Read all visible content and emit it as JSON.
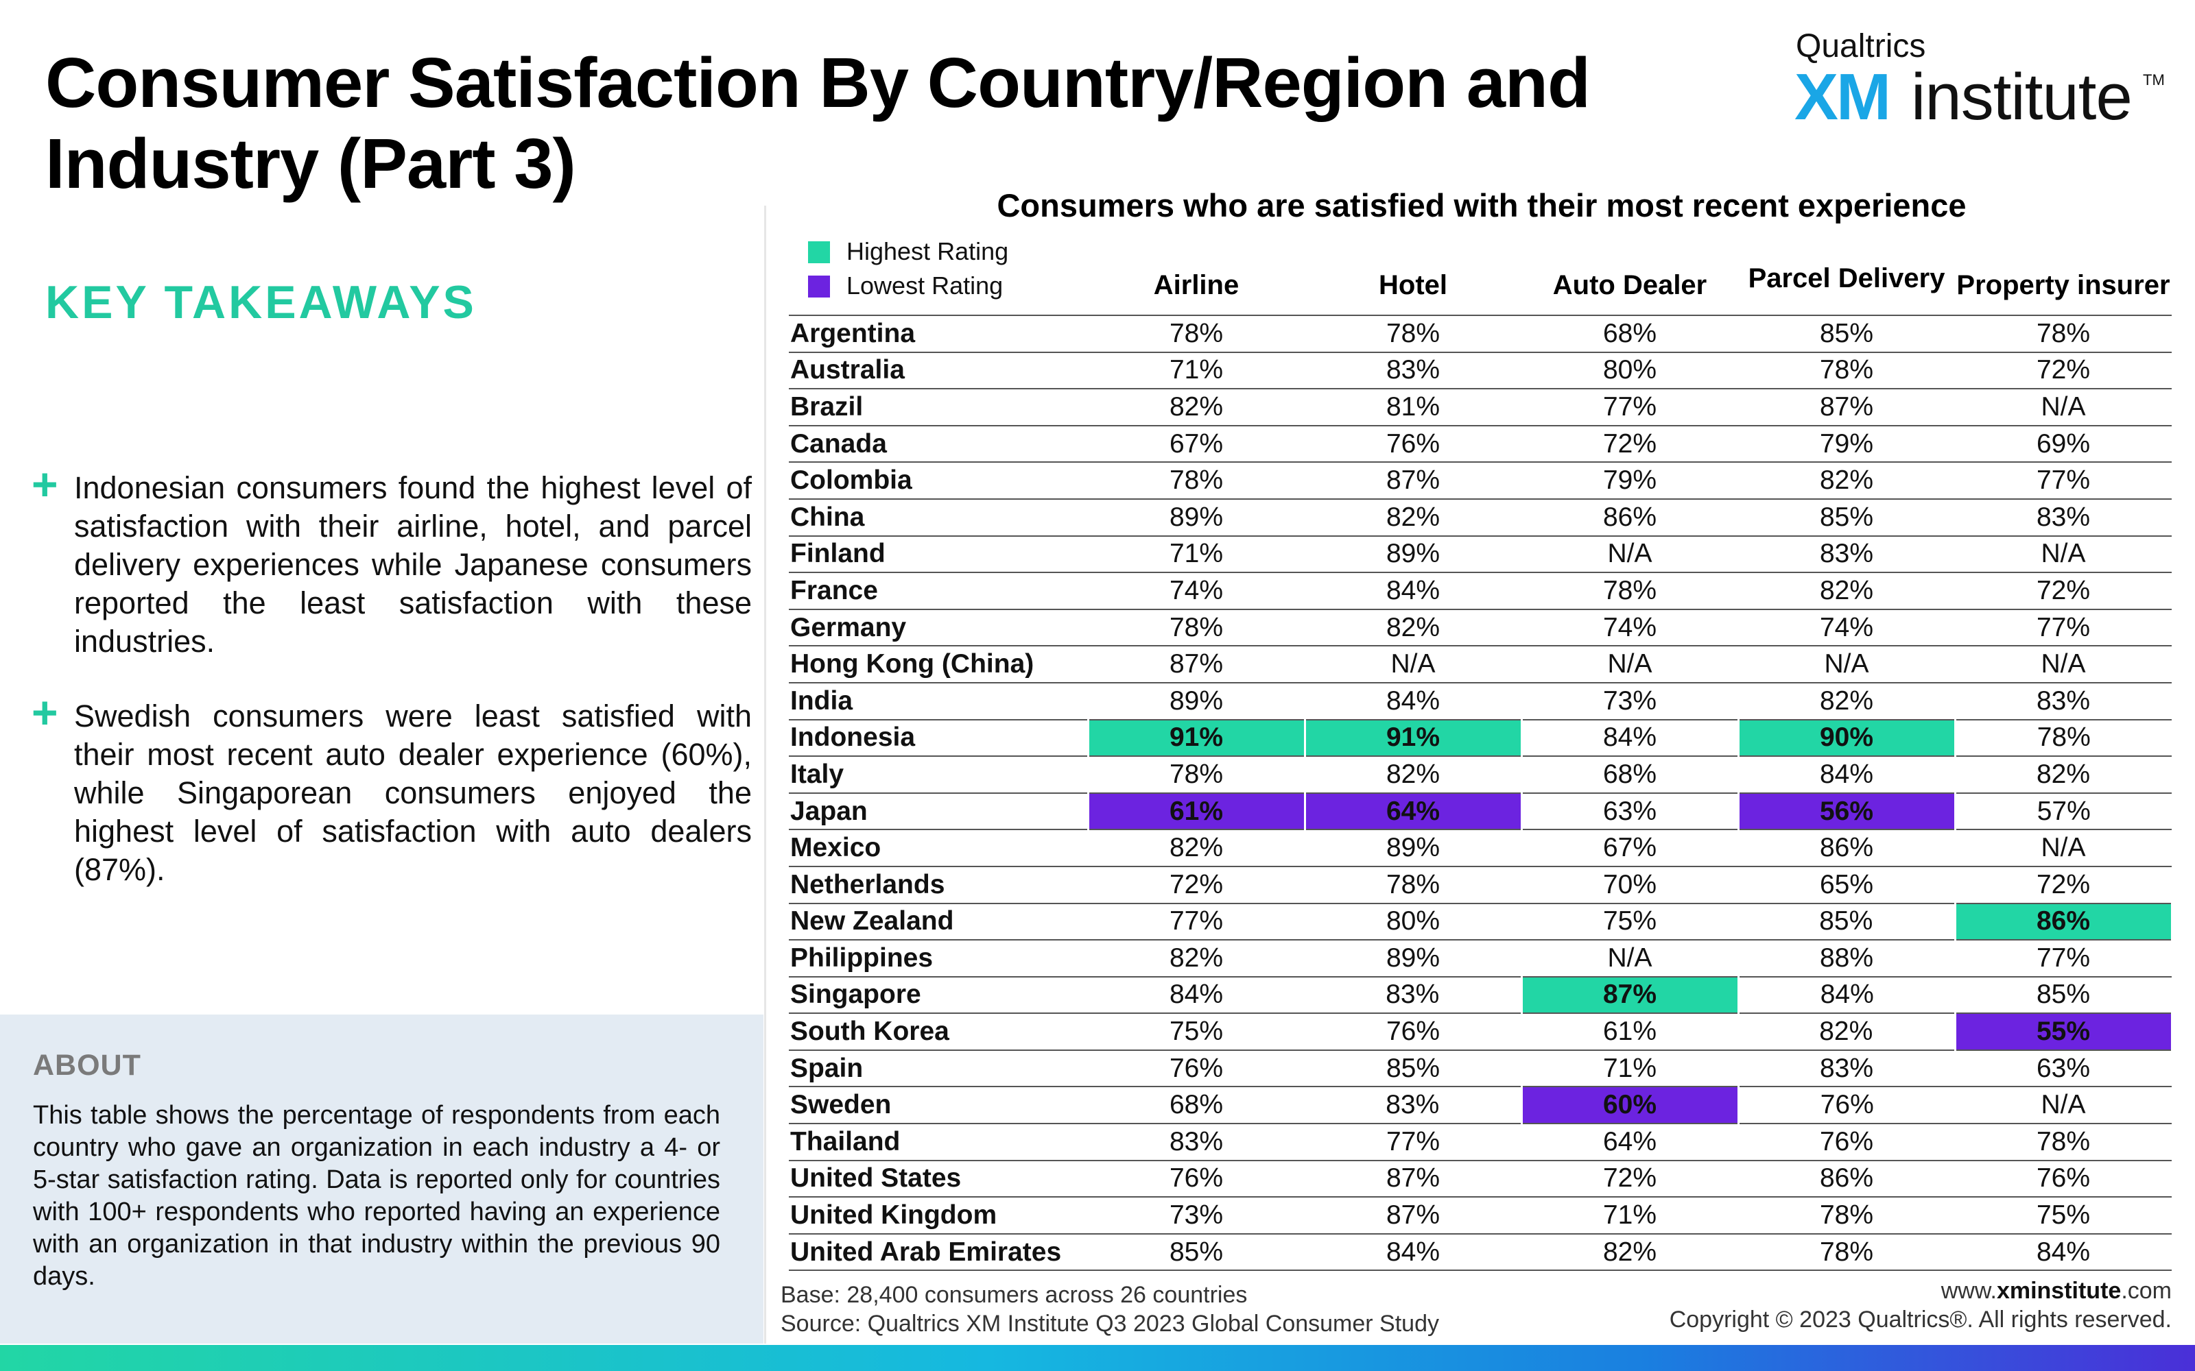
{
  "title": "Consumer Satisfaction By Country/Region and Industry (Part 3)",
  "logo": {
    "top": "Qualtrics",
    "xm": "XM",
    "institute": "institute",
    "tm": "TM"
  },
  "takeaways": {
    "heading": "KEY TAKEAWAYS",
    "bullets": [
      "Indonesian consumers found the highest level of satisfaction with their airline, hotel, and parcel delivery experiences while Japanese consumers reported the least satisfaction with these industries.",
      "Swedish consumers were least satisfied with their most recent auto dealer experience (60%), while Singaporean consumers enjoyed the highest level of satisfaction with auto dealers (87%)."
    ]
  },
  "about": {
    "title": "ABOUT",
    "text": "This table shows the percentage of respondents from each country who gave an organization in each industry a 4- or 5-star satisfaction rating. Data is reported only for countries with 100+ respondents who reported having an experience with an organization in that industry within the previous 90 days."
  },
  "table": {
    "title": "Consumers who are satisfied with their most recent experience",
    "legend": [
      {
        "label": "Highest Rating",
        "color": "#22d6a5"
      },
      {
        "label": "Lowest Rating",
        "color": "#6c23e0"
      }
    ],
    "columns": [
      "Airline",
      "Hotel",
      "Auto Dealer",
      "Parcel Delivery",
      "Property insurer"
    ],
    "rows": [
      {
        "country": "Argentina",
        "values": [
          "78%",
          "78%",
          "68%",
          "85%",
          "78%"
        ]
      },
      {
        "country": "Australia",
        "values": [
          "71%",
          "83%",
          "80%",
          "78%",
          "72%"
        ]
      },
      {
        "country": "Brazil",
        "values": [
          "82%",
          "81%",
          "77%",
          "87%",
          "N/A"
        ]
      },
      {
        "country": "Canada",
        "values": [
          "67%",
          "76%",
          "72%",
          "79%",
          "69%"
        ]
      },
      {
        "country": "Colombia",
        "values": [
          "78%",
          "87%",
          "79%",
          "82%",
          "77%"
        ]
      },
      {
        "country": "China",
        "values": [
          "89%",
          "82%",
          "86%",
          "85%",
          "83%"
        ]
      },
      {
        "country": "Finland",
        "values": [
          "71%",
          "89%",
          "N/A",
          "83%",
          "N/A"
        ]
      },
      {
        "country": "France",
        "values": [
          "74%",
          "84%",
          "78%",
          "82%",
          "72%"
        ]
      },
      {
        "country": "Germany",
        "values": [
          "78%",
          "82%",
          "74%",
          "74%",
          "77%"
        ]
      },
      {
        "country": "Hong Kong (China)",
        "values": [
          "87%",
          "N/A",
          "N/A",
          "N/A",
          "N/A"
        ]
      },
      {
        "country": "India",
        "values": [
          "89%",
          "84%",
          "73%",
          "82%",
          "83%"
        ]
      },
      {
        "country": "Indonesia",
        "values": [
          "91%",
          "91%",
          "84%",
          "90%",
          "78%"
        ],
        "highlight": [
          "hi",
          "hi",
          "",
          "hi",
          ""
        ]
      },
      {
        "country": "Italy",
        "values": [
          "78%",
          "82%",
          "68%",
          "84%",
          "82%"
        ]
      },
      {
        "country": "Japan",
        "values": [
          "61%",
          "64%",
          "63%",
          "56%",
          "57%"
        ],
        "highlight": [
          "lo",
          "lo",
          "",
          "lo",
          ""
        ]
      },
      {
        "country": "Mexico",
        "values": [
          "82%",
          "89%",
          "67%",
          "86%",
          "N/A"
        ]
      },
      {
        "country": "Netherlands",
        "values": [
          "72%",
          "78%",
          "70%",
          "65%",
          "72%"
        ]
      },
      {
        "country": "New Zealand",
        "values": [
          "77%",
          "80%",
          "75%",
          "85%",
          "86%"
        ],
        "highlight": [
          "",
          "",
          "",
          "",
          "hi"
        ]
      },
      {
        "country": "Philippines",
        "values": [
          "82%",
          "89%",
          "N/A",
          "88%",
          "77%"
        ]
      },
      {
        "country": "Singapore",
        "values": [
          "84%",
          "83%",
          "87%",
          "84%",
          "85%"
        ],
        "highlight": [
          "",
          "",
          "hi",
          "",
          ""
        ]
      },
      {
        "country": "South Korea",
        "values": [
          "75%",
          "76%",
          "61%",
          "82%",
          "55%"
        ],
        "highlight": [
          "",
          "",
          "",
          "",
          "lo"
        ]
      },
      {
        "country": "Spain",
        "values": [
          "76%",
          "85%",
          "71%",
          "83%",
          "63%"
        ]
      },
      {
        "country": "Sweden",
        "values": [
          "68%",
          "83%",
          "60%",
          "76%",
          "N/A"
        ],
        "highlight": [
          "",
          "",
          "lo",
          "",
          ""
        ]
      },
      {
        "country": "Thailand",
        "values": [
          "83%",
          "77%",
          "64%",
          "76%",
          "78%"
        ]
      },
      {
        "country": "United States",
        "values": [
          "76%",
          "87%",
          "72%",
          "86%",
          "76%"
        ]
      },
      {
        "country": "United Kingdom",
        "values": [
          "73%",
          "87%",
          "71%",
          "78%",
          "75%"
        ]
      },
      {
        "country": "United Arab Emirates",
        "values": [
          "85%",
          "84%",
          "82%",
          "78%",
          "84%"
        ]
      }
    ]
  },
  "footer": {
    "base": "Base: 28,400 consumers across 26 countries",
    "source": "Source: Qualtrics XM Institute Q3 2023 Global Consumer Study",
    "url_prefix": "www.",
    "url_bold": "xminstitute",
    "url_suffix": ".com",
    "copyright": "Copyright © 2023 Qualtrics®. All rights reserved."
  }
}
